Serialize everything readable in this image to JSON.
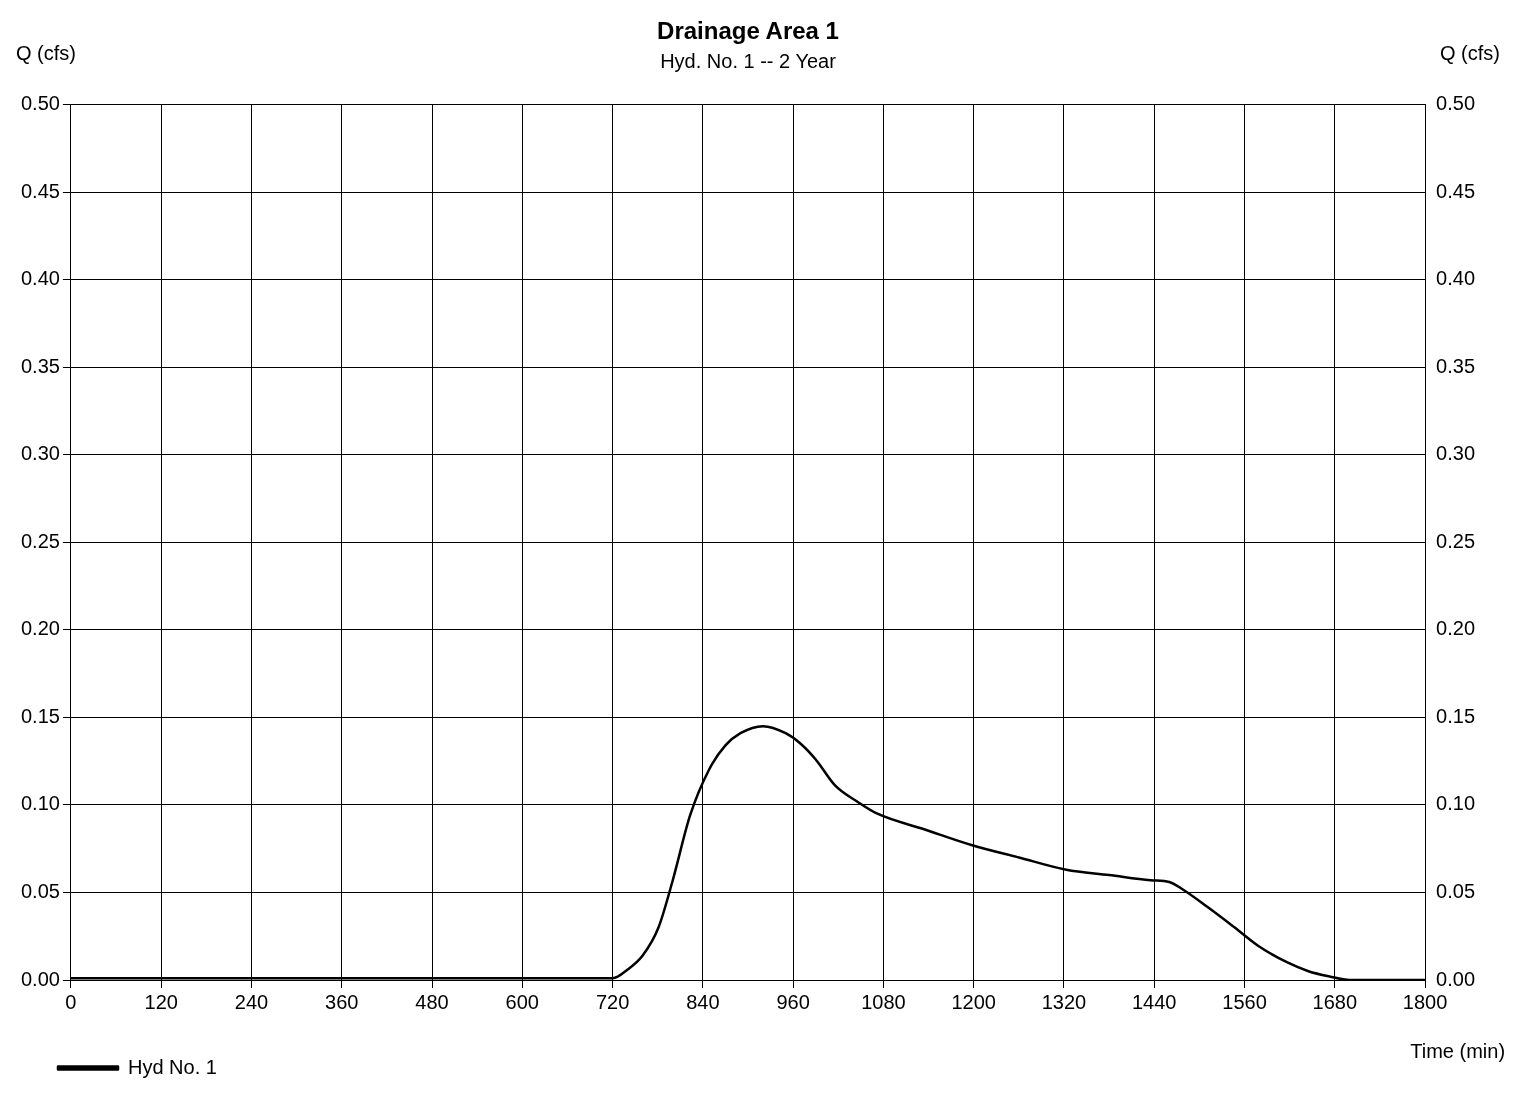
{
  "chart_data": {
    "type": "line",
    "title": "Drainage Area 1",
    "subtitle": "Hyd. No. 1 -- 2 Year",
    "xlabel": "Time (min)",
    "ylabel": "Q (cfs)",
    "y2label": "Q (cfs)",
    "x": [
      0,
      120,
      240,
      360,
      480,
      600,
      720,
      740,
      760,
      781,
      800,
      823,
      848,
      870,
      890,
      920,
      950,
      970,
      990,
      1016,
      1045,
      1072,
      1135,
      1198,
      1260,
      1323,
      1380,
      1435,
      1460,
      1477,
      1510,
      1547,
      1580,
      1617,
      1645,
      1673,
      1700,
      1750,
      1800
    ],
    "series": [
      {
        "name": "Hyd No. 1",
        "color": "#000000",
        "values": [
          0.001,
          0.001,
          0.001,
          0.001,
          0.001,
          0.001,
          0.001,
          0.006,
          0.014,
          0.03,
          0.057,
          0.094,
          0.12,
          0.134,
          0.141,
          0.145,
          0.141,
          0.135,
          0.126,
          0.111,
          0.102,
          0.095,
          0.086,
          0.077,
          0.07,
          0.063,
          0.06,
          0.057,
          0.056,
          0.052,
          0.042,
          0.03,
          0.019,
          0.01,
          0.005,
          0.002,
          0,
          0,
          0
        ]
      }
    ],
    "xlim": [
      0,
      1800
    ],
    "xticks": [
      0,
      120,
      240,
      360,
      480,
      600,
      720,
      840,
      960,
      1080,
      1200,
      1320,
      1440,
      1560,
      1680,
      1800
    ],
    "ylim": [
      0,
      0.5
    ],
    "yticks": [
      {
        "value": 0,
        "label": "0.00"
      },
      {
        "value": 0.05,
        "label": "0.05"
      },
      {
        "value": 0.1,
        "label": "0.10"
      },
      {
        "value": 0.15,
        "label": "0.15"
      },
      {
        "value": 0.2,
        "label": "0.20"
      },
      {
        "value": 0.25,
        "label": "0.25"
      },
      {
        "value": 0.3,
        "label": "0.30"
      },
      {
        "value": 0.35,
        "label": "0.35"
      },
      {
        "value": 0.4,
        "label": "0.40"
      },
      {
        "value": 0.45,
        "label": "0.45"
      },
      {
        "value": 0.5,
        "label": "0.50"
      }
    ],
    "y2lim": [
      0,
      0.5
    ],
    "y2ticks": [
      {
        "value": 0,
        "label": "0.00"
      },
      {
        "value": 0.05,
        "label": "0.05"
      },
      {
        "value": 0.1,
        "label": "0.10"
      },
      {
        "value": 0.15,
        "label": "0.15"
      },
      {
        "value": 0.2,
        "label": "0.20"
      },
      {
        "value": 0.25,
        "label": "0.25"
      },
      {
        "value": 0.3,
        "label": "0.30"
      },
      {
        "value": 0.35,
        "label": "0.35"
      },
      {
        "value": 0.4,
        "label": "0.40"
      },
      {
        "value": 0.45,
        "label": "0.45"
      },
      {
        "value": 0.5,
        "label": "0.50"
      }
    ],
    "grid": true,
    "legend": "bottom left",
    "marker": "none",
    "line_style": "solid"
  }
}
